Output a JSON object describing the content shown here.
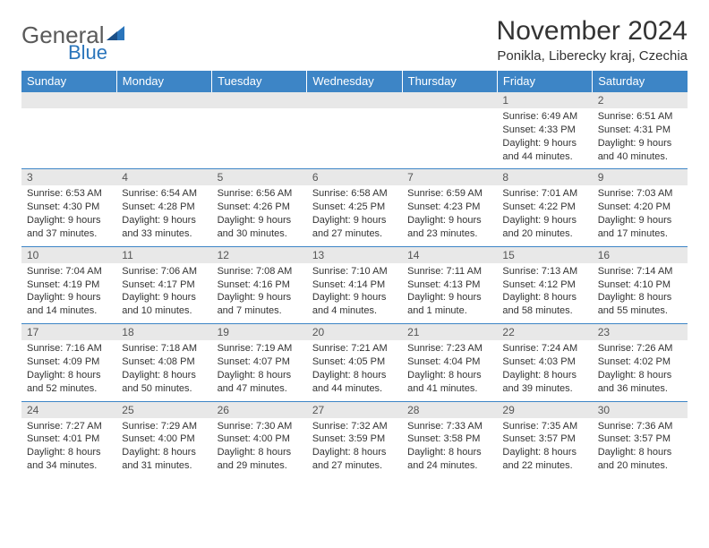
{
  "brand": {
    "name1": "General",
    "name2": "Blue"
  },
  "title": "November 2024",
  "location": "Ponikla, Liberecky kraj, Czechia",
  "colors": {
    "header_bg": "#3d85c6",
    "header_text": "#ffffff",
    "daynum_bg": "#e8e8e8",
    "row_border": "#3d85c6",
    "brand_gray": "#5a5a5a",
    "brand_blue": "#2a75bb"
  },
  "dayHeaders": [
    "Sunday",
    "Monday",
    "Tuesday",
    "Wednesday",
    "Thursday",
    "Friday",
    "Saturday"
  ],
  "weeks": [
    [
      null,
      null,
      null,
      null,
      null,
      {
        "n": "1",
        "sunrise": "Sunrise: 6:49 AM",
        "sunset": "Sunset: 4:33 PM",
        "daylight1": "Daylight: 9 hours",
        "daylight2": "and 44 minutes."
      },
      {
        "n": "2",
        "sunrise": "Sunrise: 6:51 AM",
        "sunset": "Sunset: 4:31 PM",
        "daylight1": "Daylight: 9 hours",
        "daylight2": "and 40 minutes."
      }
    ],
    [
      {
        "n": "3",
        "sunrise": "Sunrise: 6:53 AM",
        "sunset": "Sunset: 4:30 PM",
        "daylight1": "Daylight: 9 hours",
        "daylight2": "and 37 minutes."
      },
      {
        "n": "4",
        "sunrise": "Sunrise: 6:54 AM",
        "sunset": "Sunset: 4:28 PM",
        "daylight1": "Daylight: 9 hours",
        "daylight2": "and 33 minutes."
      },
      {
        "n": "5",
        "sunrise": "Sunrise: 6:56 AM",
        "sunset": "Sunset: 4:26 PM",
        "daylight1": "Daylight: 9 hours",
        "daylight2": "and 30 minutes."
      },
      {
        "n": "6",
        "sunrise": "Sunrise: 6:58 AM",
        "sunset": "Sunset: 4:25 PM",
        "daylight1": "Daylight: 9 hours",
        "daylight2": "and 27 minutes."
      },
      {
        "n": "7",
        "sunrise": "Sunrise: 6:59 AM",
        "sunset": "Sunset: 4:23 PM",
        "daylight1": "Daylight: 9 hours",
        "daylight2": "and 23 minutes."
      },
      {
        "n": "8",
        "sunrise": "Sunrise: 7:01 AM",
        "sunset": "Sunset: 4:22 PM",
        "daylight1": "Daylight: 9 hours",
        "daylight2": "and 20 minutes."
      },
      {
        "n": "9",
        "sunrise": "Sunrise: 7:03 AM",
        "sunset": "Sunset: 4:20 PM",
        "daylight1": "Daylight: 9 hours",
        "daylight2": "and 17 minutes."
      }
    ],
    [
      {
        "n": "10",
        "sunrise": "Sunrise: 7:04 AM",
        "sunset": "Sunset: 4:19 PM",
        "daylight1": "Daylight: 9 hours",
        "daylight2": "and 14 minutes."
      },
      {
        "n": "11",
        "sunrise": "Sunrise: 7:06 AM",
        "sunset": "Sunset: 4:17 PM",
        "daylight1": "Daylight: 9 hours",
        "daylight2": "and 10 minutes."
      },
      {
        "n": "12",
        "sunrise": "Sunrise: 7:08 AM",
        "sunset": "Sunset: 4:16 PM",
        "daylight1": "Daylight: 9 hours",
        "daylight2": "and 7 minutes."
      },
      {
        "n": "13",
        "sunrise": "Sunrise: 7:10 AM",
        "sunset": "Sunset: 4:14 PM",
        "daylight1": "Daylight: 9 hours",
        "daylight2": "and 4 minutes."
      },
      {
        "n": "14",
        "sunrise": "Sunrise: 7:11 AM",
        "sunset": "Sunset: 4:13 PM",
        "daylight1": "Daylight: 9 hours",
        "daylight2": "and 1 minute."
      },
      {
        "n": "15",
        "sunrise": "Sunrise: 7:13 AM",
        "sunset": "Sunset: 4:12 PM",
        "daylight1": "Daylight: 8 hours",
        "daylight2": "and 58 minutes."
      },
      {
        "n": "16",
        "sunrise": "Sunrise: 7:14 AM",
        "sunset": "Sunset: 4:10 PM",
        "daylight1": "Daylight: 8 hours",
        "daylight2": "and 55 minutes."
      }
    ],
    [
      {
        "n": "17",
        "sunrise": "Sunrise: 7:16 AM",
        "sunset": "Sunset: 4:09 PM",
        "daylight1": "Daylight: 8 hours",
        "daylight2": "and 52 minutes."
      },
      {
        "n": "18",
        "sunrise": "Sunrise: 7:18 AM",
        "sunset": "Sunset: 4:08 PM",
        "daylight1": "Daylight: 8 hours",
        "daylight2": "and 50 minutes."
      },
      {
        "n": "19",
        "sunrise": "Sunrise: 7:19 AM",
        "sunset": "Sunset: 4:07 PM",
        "daylight1": "Daylight: 8 hours",
        "daylight2": "and 47 minutes."
      },
      {
        "n": "20",
        "sunrise": "Sunrise: 7:21 AM",
        "sunset": "Sunset: 4:05 PM",
        "daylight1": "Daylight: 8 hours",
        "daylight2": "and 44 minutes."
      },
      {
        "n": "21",
        "sunrise": "Sunrise: 7:23 AM",
        "sunset": "Sunset: 4:04 PM",
        "daylight1": "Daylight: 8 hours",
        "daylight2": "and 41 minutes."
      },
      {
        "n": "22",
        "sunrise": "Sunrise: 7:24 AM",
        "sunset": "Sunset: 4:03 PM",
        "daylight1": "Daylight: 8 hours",
        "daylight2": "and 39 minutes."
      },
      {
        "n": "23",
        "sunrise": "Sunrise: 7:26 AM",
        "sunset": "Sunset: 4:02 PM",
        "daylight1": "Daylight: 8 hours",
        "daylight2": "and 36 minutes."
      }
    ],
    [
      {
        "n": "24",
        "sunrise": "Sunrise: 7:27 AM",
        "sunset": "Sunset: 4:01 PM",
        "daylight1": "Daylight: 8 hours",
        "daylight2": "and 34 minutes."
      },
      {
        "n": "25",
        "sunrise": "Sunrise: 7:29 AM",
        "sunset": "Sunset: 4:00 PM",
        "daylight1": "Daylight: 8 hours",
        "daylight2": "and 31 minutes."
      },
      {
        "n": "26",
        "sunrise": "Sunrise: 7:30 AM",
        "sunset": "Sunset: 4:00 PM",
        "daylight1": "Daylight: 8 hours",
        "daylight2": "and 29 minutes."
      },
      {
        "n": "27",
        "sunrise": "Sunrise: 7:32 AM",
        "sunset": "Sunset: 3:59 PM",
        "daylight1": "Daylight: 8 hours",
        "daylight2": "and 27 minutes."
      },
      {
        "n": "28",
        "sunrise": "Sunrise: 7:33 AM",
        "sunset": "Sunset: 3:58 PM",
        "daylight1": "Daylight: 8 hours",
        "daylight2": "and 24 minutes."
      },
      {
        "n": "29",
        "sunrise": "Sunrise: 7:35 AM",
        "sunset": "Sunset: 3:57 PM",
        "daylight1": "Daylight: 8 hours",
        "daylight2": "and 22 minutes."
      },
      {
        "n": "30",
        "sunrise": "Sunrise: 7:36 AM",
        "sunset": "Sunset: 3:57 PM",
        "daylight1": "Daylight: 8 hours",
        "daylight2": "and 20 minutes."
      }
    ]
  ]
}
